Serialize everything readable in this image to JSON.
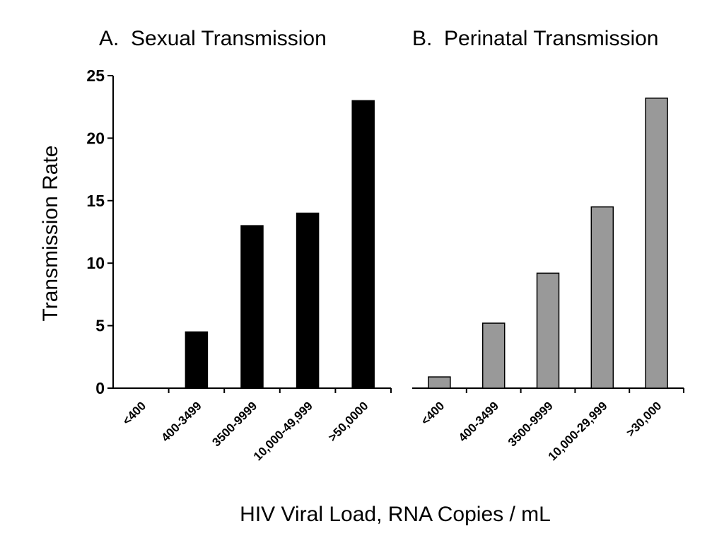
{
  "chart_data": [
    {
      "type": "bar",
      "title": "A.  Sexual Transmission",
      "ylabel": "Transmission Rate",
      "xlabel": "HIV Viral Load, RNA Copies / mL",
      "ylim": [
        0,
        25
      ],
      "yticks": [
        "0",
        "5",
        "10",
        "15",
        "20",
        "25"
      ],
      "categories": [
        "<400",
        "400-3499",
        "3500-9999",
        "10,000-49,999",
        ">50,0000"
      ],
      "values": [
        0,
        4.5,
        13,
        14,
        23
      ],
      "bar_color": "#000000",
      "grid": false
    },
    {
      "type": "bar",
      "title": "B.  Perinatal Transmission",
      "ylim": [
        0,
        25
      ],
      "categories": [
        "<400",
        "400-3499",
        "3500-9999",
        "10,000-29,999",
        ">30,000"
      ],
      "values": [
        0.9,
        5.2,
        9.2,
        14.5,
        23.2
      ],
      "bar_color": "#999999",
      "grid": false
    }
  ]
}
